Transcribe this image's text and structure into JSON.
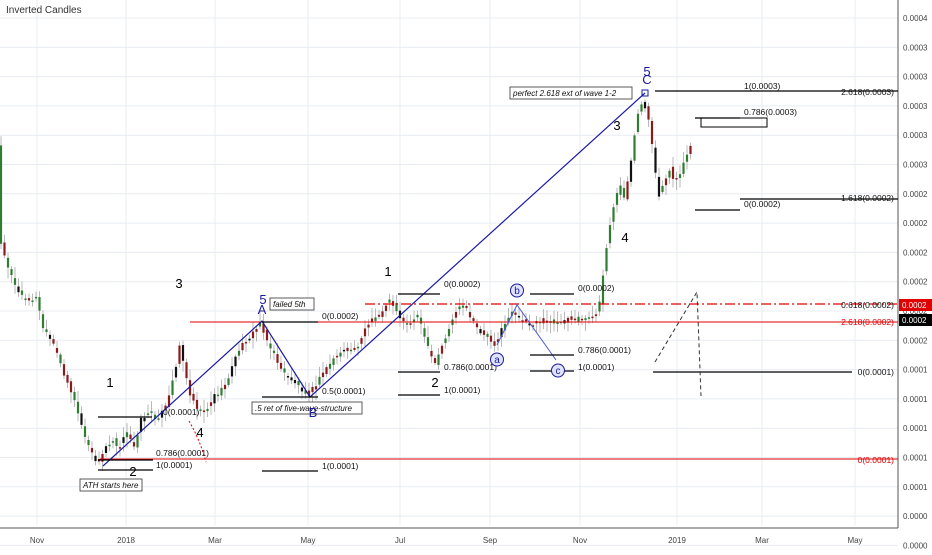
{
  "chart_data": {
    "type": "candlestick",
    "title": "Inverted Candles",
    "x_ticks": [
      "Nov",
      "2018",
      "Mar",
      "May",
      "Jul",
      "Sep",
      "Nov",
      "2019",
      "Mar",
      "May"
    ],
    "y_ticks": [
      "0.0004",
      "0.0003",
      "0.0003",
      "0.0003",
      "0.0003",
      "0.0003",
      "0.0002",
      "0.0002",
      "0.0002",
      "0.0002",
      "0.0002",
      "0.0002",
      "0.0001",
      "0.0001",
      "0.0001",
      "0.0001",
      "0.0001",
      "0.0000",
      "0.0000",
      "0.0000"
    ],
    "y_markers": [
      {
        "label": "0.0002",
        "color": "#e00000"
      },
      {
        "label": "0.0002",
        "color": "#000000"
      }
    ],
    "wave_labels": [
      {
        "text": "1",
        "color": "#000000"
      },
      {
        "text": "2",
        "color": "#000000"
      },
      {
        "text": "3",
        "color": "#000000"
      },
      {
        "text": "4",
        "color": "#000000"
      },
      {
        "text": "5",
        "color": "#1a1a9a"
      },
      {
        "text": "A",
        "color": "#1a1a9a"
      },
      {
        "text": "B",
        "color": "#1a1a9a"
      },
      {
        "text": "1",
        "color": "#000000"
      },
      {
        "text": "2",
        "color": "#000000"
      },
      {
        "text": "a",
        "color": "#1a1a9a"
      },
      {
        "text": "b",
        "color": "#1a1a9a"
      },
      {
        "text": "c",
        "color": "#1a1a9a"
      },
      {
        "text": "3",
        "color": "#000000"
      },
      {
        "text": "4",
        "color": "#000000"
      },
      {
        "text": "5",
        "color": "#1a1a9a"
      },
      {
        "text": "C",
        "color": "#1a1a9a"
      }
    ],
    "annotations": [
      "ATH starts here",
      "failed 5th",
      ".5 ret of five-wave-structure",
      "perfect 2.618 ext of wave 1-2"
    ],
    "fib_labels": [
      "0.786(0.0001)",
      "1(0.0001)",
      "0(0.0001)",
      "0(0.0002)",
      "0.5(0.0001)",
      "1(0.0001)",
      "0(0.0002)",
      "0.786(0.0001)",
      "1(0.0001)",
      "0(0.0002)",
      "0.786(0.0001)",
      "1(0.0001)",
      "1(0.0003)",
      "0.786(0.0003)",
      "0(0.0002)",
      "2.618(0.0003)",
      "1.618(0.0002)",
      "0.618(0.0002)",
      "2.618(0.0002)",
      "0(0.0001)",
      "0(0.0001)"
    ],
    "colors": {
      "up_candle": "#2e7d32",
      "down_candle": "#8b1a1a",
      "neutral_candle": "#111111",
      "wick": "#b8b8b8",
      "blue_lines": "#1a1aa8",
      "red_lines": "#e00000",
      "fib_lines": "#000000",
      "grid": "#e8ecf2"
    }
  }
}
